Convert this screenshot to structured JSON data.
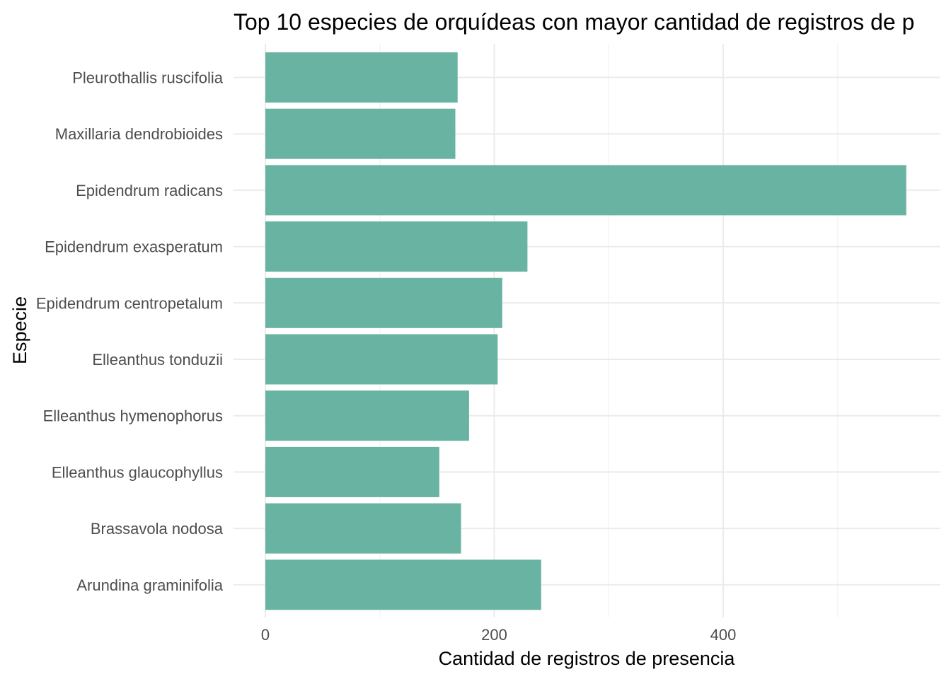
{
  "chart_data": {
    "type": "bar",
    "orientation": "horizontal",
    "title": "Top 10 especies de orquídeas con mayor cantidad de registros de p",
    "xlabel": "Cantidad de registros de presencia",
    "ylabel": "Especie",
    "categories": [
      "Pleurothallis ruscifolia",
      "Maxillaria dendrobioides",
      "Epidendrum radicans",
      "Epidendrum exasperatum",
      "Epidendrum centropetalum",
      "Elleanthus tonduzii",
      "Elleanthus hymenophorus",
      "Elleanthus glaucophyllus",
      "Brassavola nodosa",
      "Arundina graminifolia"
    ],
    "values": [
      168,
      166,
      560,
      229,
      207,
      203,
      178,
      152,
      171,
      241
    ],
    "xlim": [
      0,
      589
    ],
    "xticks": [
      0,
      200,
      400
    ],
    "grid": true,
    "bar_color": "#69b3a2"
  }
}
